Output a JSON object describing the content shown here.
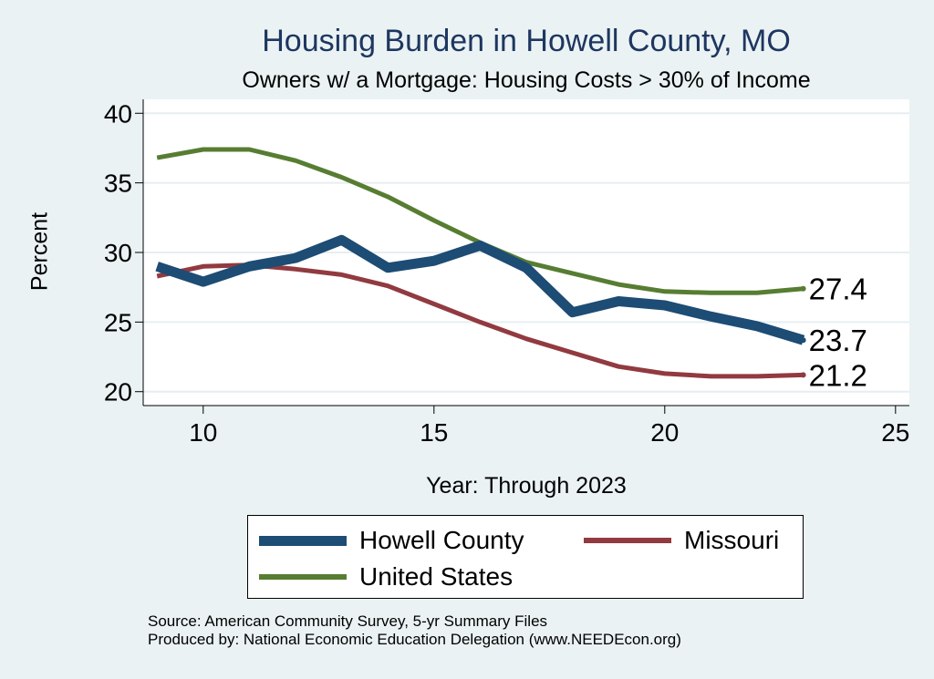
{
  "chart_data": {
    "type": "line",
    "title": "Housing Burden in Howell County, MO",
    "subtitle": "Owners w/ a Mortgage: Housing Costs > 30% of Income",
    "xlabel": "Year: Through 2023",
    "ylabel": "Percent",
    "xlim": [
      8.7,
      25.3
    ],
    "ylim": [
      19.0,
      41.0
    ],
    "xticks": [
      10,
      15,
      20,
      25
    ],
    "yticks": [
      20,
      25,
      30,
      35,
      40
    ],
    "grid": true,
    "x": [
      9,
      10,
      11,
      12,
      13,
      14,
      15,
      16,
      17,
      18,
      19,
      20,
      21,
      22,
      23
    ],
    "series": [
      {
        "name": "Howell County",
        "color": "#1d4c74",
        "width": "thick",
        "values": [
          29.0,
          27.9,
          29.0,
          29.6,
          30.9,
          28.9,
          29.4,
          30.5,
          28.9,
          25.7,
          26.5,
          26.2,
          25.4,
          24.7,
          23.7
        ],
        "end_label": "23.7"
      },
      {
        "name": "Missouri",
        "color": "#913a40",
        "width": "thin",
        "values": [
          28.3,
          29.0,
          29.1,
          28.8,
          28.4,
          27.6,
          26.3,
          25.0,
          23.8,
          22.8,
          21.8,
          21.3,
          21.1,
          21.1,
          21.2
        ],
        "end_label": "21.2"
      },
      {
        "name": "United States",
        "color": "#577d32",
        "width": "thin",
        "values": [
          36.8,
          37.4,
          37.4,
          36.6,
          35.4,
          34.0,
          32.3,
          30.7,
          29.3,
          28.5,
          27.7,
          27.2,
          27.1,
          27.1,
          27.4
        ],
        "end_label": "27.4"
      }
    ],
    "legend": {
      "position": "bottom",
      "entries": [
        "Howell County",
        "Missouri",
        "United States"
      ]
    }
  },
  "source_text": "Source: American Community Survey, 5-yr Summary Files",
  "produced_text": "Produced by: National Economic Education Delegation (www.NEEDEcon.org)"
}
